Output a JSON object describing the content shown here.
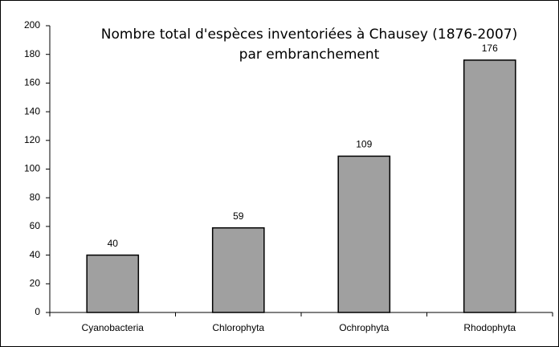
{
  "chart_data": {
    "type": "bar",
    "title": [
      "Nombre total d'espèces inventoriées à Chausey (1876-2007)",
      "par embranchement"
    ],
    "categories": [
      "Cyanobacteria",
      "Chlorophyta",
      "Ochrophyta",
      "Rhodophyta"
    ],
    "values": [
      40,
      59,
      109,
      176
    ],
    "color": "#a0a0a0",
    "ylim": [
      0,
      200
    ],
    "yticks": [
      0,
      20,
      40,
      60,
      80,
      100,
      120,
      140,
      160,
      180,
      200
    ],
    "grid": false
  }
}
